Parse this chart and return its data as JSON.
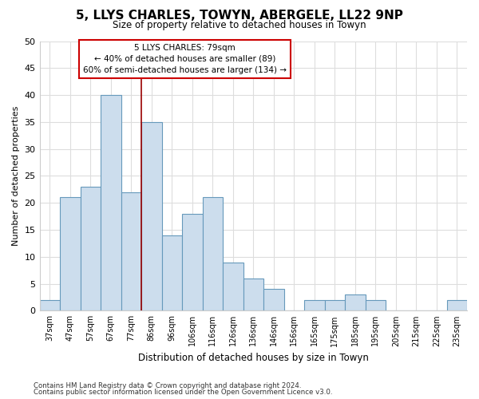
{
  "title_line1": "5, LLYS CHARLES, TOWYN, ABERGELE, LL22 9NP",
  "title_line2": "Size of property relative to detached houses in Towyn",
  "xlabel": "Distribution of detached houses by size in Towyn",
  "ylabel": "Number of detached properties",
  "categories": [
    "37sqm",
    "47sqm",
    "57sqm",
    "67sqm",
    "77sqm",
    "86sqm",
    "96sqm",
    "106sqm",
    "116sqm",
    "126sqm",
    "136sqm",
    "146sqm",
    "156sqm",
    "165sqm",
    "175sqm",
    "185sqm",
    "195sqm",
    "205sqm",
    "215sqm",
    "225sqm",
    "235sqm"
  ],
  "values": [
    2,
    21,
    23,
    40,
    22,
    35,
    14,
    18,
    21,
    9,
    6,
    4,
    0,
    2,
    2,
    3,
    2,
    0,
    0,
    0,
    2
  ],
  "bar_color": "#ccdded",
  "bar_edge_color": "#6699bb",
  "vline_x_index": 4.5,
  "vline_color": "#990000",
  "annotation_text": "5 LLYS CHARLES: 79sqm\n← 40% of detached houses are smaller (89)\n60% of semi-detached houses are larger (134) →",
  "annotation_box_color": "white",
  "annotation_box_edge": "#cc0000",
  "ylim": [
    0,
    50
  ],
  "yticks": [
    0,
    5,
    10,
    15,
    20,
    25,
    30,
    35,
    40,
    45,
    50
  ],
  "footer_line1": "Contains HM Land Registry data © Crown copyright and database right 2024.",
  "footer_line2": "Contains public sector information licensed under the Open Government Licence v3.0.",
  "bg_color": "#ffffff",
  "plot_bg_color": "#ffffff",
  "grid_color": "#dddddd"
}
